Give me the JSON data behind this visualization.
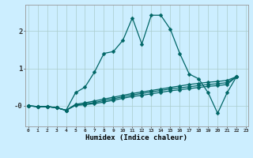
{
  "xlabel": "Humidex (Indice chaleur)",
  "background_color": "#cceeff",
  "grid_color": "#aacccc",
  "line_color": "#006666",
  "series": [
    [
      0.0,
      -0.02,
      -0.02,
      -0.05,
      -0.12,
      0.35,
      0.5,
      0.9,
      1.4,
      1.45,
      1.75,
      2.35,
      1.65,
      2.42,
      2.42,
      2.05,
      1.4,
      0.85,
      0.72,
      0.35,
      -0.2,
      0.35,
      0.78
    ],
    [
      0.0,
      -0.02,
      -0.02,
      -0.05,
      -0.12,
      0.04,
      0.08,
      0.13,
      0.18,
      0.23,
      0.28,
      0.33,
      0.37,
      0.41,
      0.45,
      0.49,
      0.53,
      0.57,
      0.6,
      0.63,
      0.65,
      0.68,
      0.78
    ],
    [
      0.0,
      -0.02,
      -0.02,
      -0.05,
      -0.12,
      0.02,
      0.05,
      0.09,
      0.14,
      0.19,
      0.24,
      0.29,
      0.33,
      0.37,
      0.41,
      0.45,
      0.48,
      0.51,
      0.54,
      0.57,
      0.59,
      0.62,
      0.78
    ],
    [
      0.0,
      -0.02,
      -0.02,
      -0.05,
      -0.12,
      0.01,
      0.03,
      0.06,
      0.1,
      0.15,
      0.2,
      0.25,
      0.28,
      0.32,
      0.36,
      0.4,
      0.43,
      0.46,
      0.49,
      0.52,
      0.54,
      0.57,
      0.78
    ]
  ],
  "markersize": 2.5,
  "linewidth": 0.9,
  "yticks": [
    0,
    1,
    2
  ],
  "ytick_labels": [
    "-0",
    "1",
    "2"
  ],
  "xlim": [
    -0.3,
    23.2
  ],
  "ylim": [
    -0.55,
    2.7
  ]
}
